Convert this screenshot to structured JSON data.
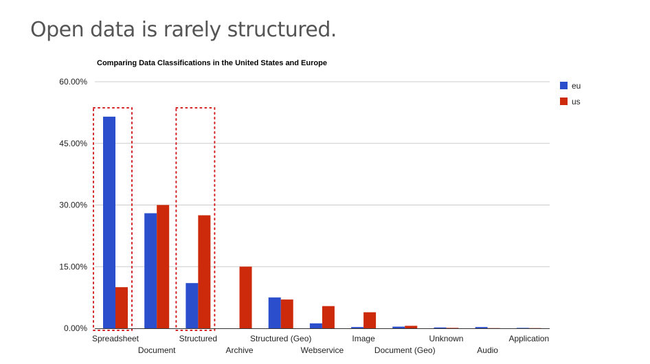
{
  "slide": {
    "title": "Open data is rarely structured."
  },
  "chart_data": {
    "type": "bar",
    "title": "Comparing Data Classifications in the United States and Europe",
    "xlabel": "",
    "ylabel": "",
    "ylim": [
      0,
      60
    ],
    "yticks": [
      "0.00%",
      "15.00%",
      "30.00%",
      "45.00%",
      "60.00%"
    ],
    "ytick_values": [
      0,
      15,
      30,
      45,
      60
    ],
    "grid": true,
    "legend_position": "right",
    "categories": [
      "Spreadsheet",
      "Document",
      "Structured",
      "Archive",
      "Structured (Geo)",
      "Webservice",
      "Image",
      "Document (Geo)",
      "Unknown",
      "Audio",
      "Application"
    ],
    "series": [
      {
        "name": "eu",
        "color": "#2b4fcc",
        "values": [
          51.5,
          28,
          11,
          0,
          7.5,
          1.2,
          0.3,
          0.4,
          0.2,
          0.3,
          0.1
        ]
      },
      {
        "name": "us",
        "color": "#cc2a0a",
        "values": [
          10,
          30,
          27.5,
          15,
          7,
          5.4,
          3.9,
          0.6,
          0.1,
          0.05,
          0.05
        ]
      }
    ],
    "highlighted_categories": [
      "Spreadsheet",
      "Structured"
    ],
    "highlight_color": "#d42020"
  }
}
